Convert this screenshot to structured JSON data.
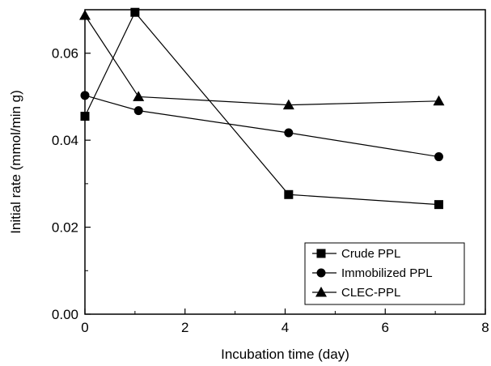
{
  "chart_data": {
    "type": "line",
    "xlabel": "Incubation time (day)",
    "ylabel": "Initial rate (mmol/min g)",
    "xlim": [
      0,
      8
    ],
    "ylim": [
      0,
      0.07
    ],
    "xticks": [
      0,
      2,
      4,
      6,
      8
    ],
    "xtick_labels": [
      "0",
      "2",
      "4",
      "6",
      "8"
    ],
    "yticks": [
      0,
      0.02,
      0.04,
      0.06
    ],
    "ytick_labels": [
      "0.00",
      "0.02",
      "0.04",
      "0.06"
    ],
    "grid": false,
    "legend_position": "bottom-right",
    "series": [
      {
        "name": "Crude PPL",
        "marker": "square",
        "color": "#000000",
        "x": [
          0,
          1,
          4.07,
          7.07
        ],
        "y": [
          0.0455,
          0.0694,
          0.0275,
          0.0252
        ]
      },
      {
        "name": "Immobilized PPL",
        "marker": "circle",
        "color": "#000000",
        "x": [
          0,
          1.07,
          4.07,
          7.07
        ],
        "y": [
          0.0503,
          0.0468,
          0.0417,
          0.0362
        ]
      },
      {
        "name": "CLEC-PPL",
        "marker": "triangle",
        "color": "#000000",
        "x": [
          0,
          1.07,
          4.07,
          7.07
        ],
        "y": [
          0.0687,
          0.05,
          0.0481,
          0.049
        ]
      }
    ]
  }
}
